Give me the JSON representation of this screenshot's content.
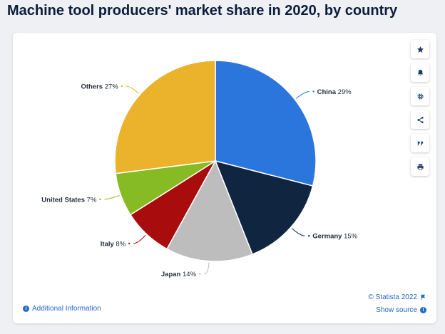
{
  "page": {
    "title": "Machine tool producers' market share in 2020, by country"
  },
  "chart_data": {
    "type": "pie",
    "title": "Machine tool producers' market share in 2020, by country",
    "slices": [
      {
        "label": "China",
        "value": 29,
        "display": "29%",
        "color": "#2a76dd"
      },
      {
        "label": "Germany",
        "value": 15,
        "display": "15%",
        "color": "#10253f"
      },
      {
        "label": "Japan",
        "value": 14,
        "display": "14%",
        "color": "#bdbdbd"
      },
      {
        "label": "Italy",
        "value": 8,
        "display": "8%",
        "color": "#a90c0d"
      },
      {
        "label": "United States",
        "value": 7,
        "display": "7%",
        "color": "#86bb24"
      },
      {
        "label": "Others",
        "value": 27,
        "display": "27%",
        "color": "#ebb22b"
      }
    ],
    "start_angle_deg": 0,
    "direction": "clockwise"
  },
  "toolbar": {
    "buttons": [
      {
        "icon": "star-icon",
        "name": "favorite-button"
      },
      {
        "icon": "bell-icon",
        "name": "notification-button"
      },
      {
        "icon": "gear-icon",
        "name": "settings-button"
      },
      {
        "icon": "share-icon",
        "name": "share-button"
      },
      {
        "icon": "quote-icon",
        "name": "cite-button"
      },
      {
        "icon": "print-icon",
        "name": "print-button"
      }
    ]
  },
  "footer": {
    "additional_info": "Additional Information",
    "copyright": "© Statista 2022",
    "show_source": "Show source"
  },
  "colors": {
    "accent": "#2468c8",
    "title": "#0b1d3a"
  }
}
